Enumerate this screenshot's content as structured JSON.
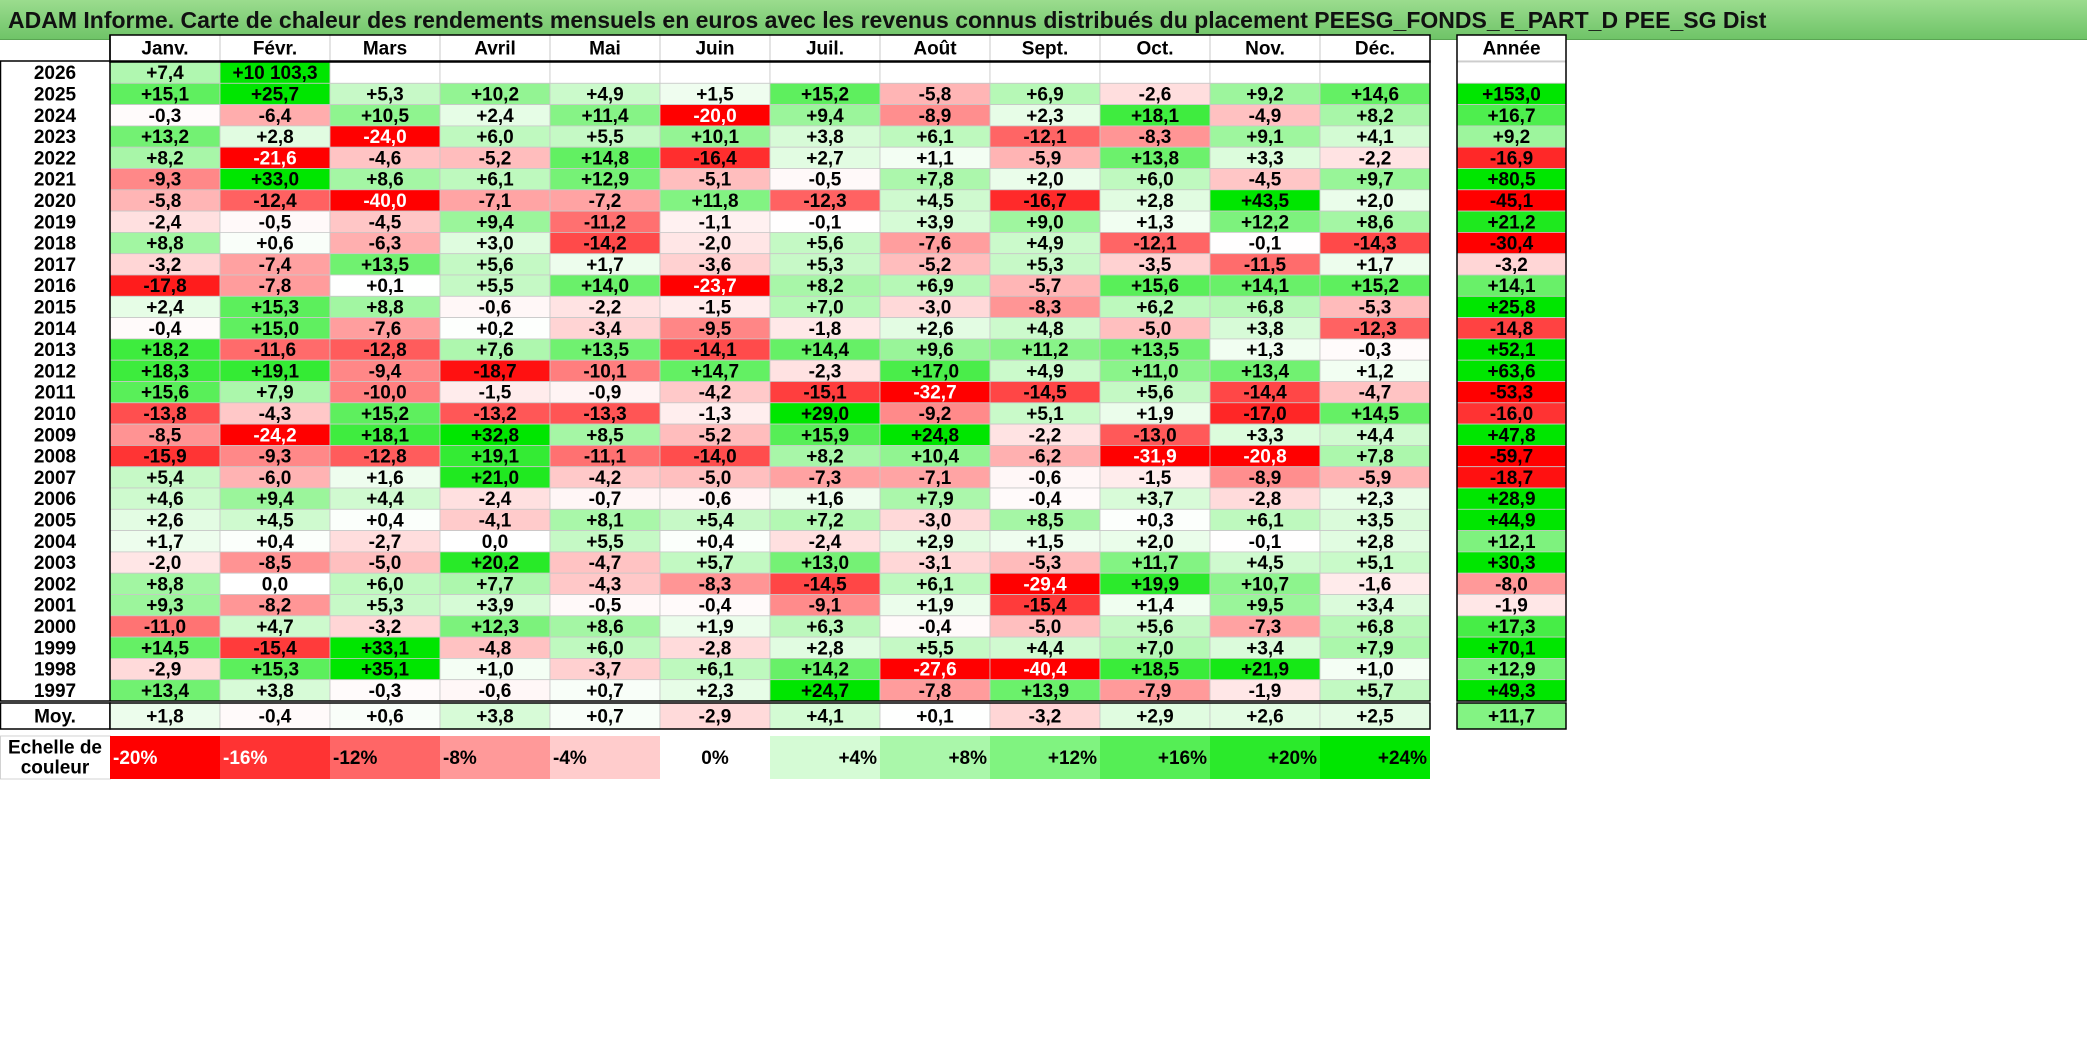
{
  "title": "ADAM Informe. Carte de chaleur des rendements mensuels en euros avec les revenus connus distribués du placement PEESG_FONDS_E_PART_D PEE_SG Dist",
  "chart_data": {
    "type": "heatmap",
    "columns": [
      "Janv.",
      "Févr.",
      "Mars",
      "Avril",
      "Mai",
      "Juin",
      "Juil.",
      "Août",
      "Sept.",
      "Oct.",
      "Nov.",
      "Déc."
    ],
    "annual_header": "Année",
    "rows": [
      {
        "year": "2026",
        "months": [
          "+7,4",
          "+10 103,3",
          "",
          "",
          "",
          "",
          "",
          "",
          "",
          "",
          "",
          ""
        ],
        "annual": ""
      },
      {
        "year": "2025",
        "months": [
          "+15,1",
          "+25,7",
          "+5,3",
          "+10,2",
          "+4,9",
          "+1,5",
          "+15,2",
          "-5,8",
          "+6,9",
          "-2,6",
          "+9,2",
          "+14,6"
        ],
        "annual": "+153,0"
      },
      {
        "year": "2024",
        "months": [
          "-0,3",
          "-6,4",
          "+10,5",
          "+2,4",
          "+11,4",
          "-20,0",
          "+9,4",
          "-8,9",
          "+2,3",
          "+18,1",
          "-4,9",
          "+8,2"
        ],
        "annual": "+16,7"
      },
      {
        "year": "2023",
        "months": [
          "+13,2",
          "+2,8",
          "-24,0",
          "+6,0",
          "+5,5",
          "+10,1",
          "+3,8",
          "+6,1",
          "-12,1",
          "-8,3",
          "+9,1",
          "+4,1"
        ],
        "annual": "+9,2"
      },
      {
        "year": "2022",
        "months": [
          "+8,2",
          "-21,6",
          "-4,6",
          "-5,2",
          "+14,8",
          "-16,4",
          "+2,7",
          "+1,1",
          "-5,9",
          "+13,8",
          "+3,3",
          "-2,2"
        ],
        "annual": "-16,9"
      },
      {
        "year": "2021",
        "months": [
          "-9,3",
          "+33,0",
          "+8,6",
          "+6,1",
          "+12,9",
          "-5,1",
          "-0,5",
          "+7,8",
          "+2,0",
          "+6,0",
          "-4,5",
          "+9,7"
        ],
        "annual": "+80,5"
      },
      {
        "year": "2020",
        "months": [
          "-5,8",
          "-12,4",
          "-40,0",
          "-7,1",
          "-7,2",
          "+11,8",
          "-12,3",
          "+4,5",
          "-16,7",
          "+2,8",
          "+43,5",
          "+2,0"
        ],
        "annual": "-45,1"
      },
      {
        "year": "2019",
        "months": [
          "-2,4",
          "-0,5",
          "-4,5",
          "+9,4",
          "-11,2",
          "-1,1",
          "-0,1",
          "+3,9",
          "+9,0",
          "+1,3",
          "+12,2",
          "+8,6"
        ],
        "annual": "+21,2"
      },
      {
        "year": "2018",
        "months": [
          "+8,8",
          "+0,6",
          "-6,3",
          "+3,0",
          "-14,2",
          "-2,0",
          "+5,6",
          "-7,6",
          "+4,9",
          "-12,1",
          "-0,1",
          "-14,3"
        ],
        "annual": "-30,4"
      },
      {
        "year": "2017",
        "months": [
          "-3,2",
          "-7,4",
          "+13,5",
          "+5,6",
          "+1,7",
          "-3,6",
          "+5,3",
          "-5,2",
          "+5,3",
          "-3,5",
          "-11,5",
          "+1,7"
        ],
        "annual": "-3,2"
      },
      {
        "year": "2016",
        "months": [
          "-17,8",
          "-7,8",
          "+0,1",
          "+5,5",
          "+14,0",
          "-23,7",
          "+8,2",
          "+6,9",
          "-5,7",
          "+15,6",
          "+14,1",
          "+15,2"
        ],
        "annual": "+14,1"
      },
      {
        "year": "2015",
        "months": [
          "+2,4",
          "+15,3",
          "+8,8",
          "-0,6",
          "-2,2",
          "-1,5",
          "+7,0",
          "-3,0",
          "-8,3",
          "+6,2",
          "+6,8",
          "-5,3"
        ],
        "annual": "+25,8"
      },
      {
        "year": "2014",
        "months": [
          "-0,4",
          "+15,0",
          "-7,6",
          "+0,2",
          "-3,4",
          "-9,5",
          "-1,8",
          "+2,6",
          "+4,8",
          "-5,0",
          "+3,8",
          "-12,3"
        ],
        "annual": "-14,8"
      },
      {
        "year": "2013",
        "months": [
          "+18,2",
          "-11,6",
          "-12,8",
          "+7,6",
          "+13,5",
          "-14,1",
          "+14,4",
          "+9,6",
          "+11,2",
          "+13,5",
          "+1,3",
          "-0,3"
        ],
        "annual": "+52,1"
      },
      {
        "year": "2012",
        "months": [
          "+18,3",
          "+19,1",
          "-9,4",
          "-18,7",
          "-10,1",
          "+14,7",
          "-2,3",
          "+17,0",
          "+4,9",
          "+11,0",
          "+13,4",
          "+1,2"
        ],
        "annual": "+63,6"
      },
      {
        "year": "2011",
        "months": [
          "+15,6",
          "+7,9",
          "-10,0",
          "-1,5",
          "-0,9",
          "-4,2",
          "-15,1",
          "-32,7",
          "-14,5",
          "+5,6",
          "-14,4",
          "-4,7"
        ],
        "annual": "-53,3"
      },
      {
        "year": "2010",
        "months": [
          "-13,8",
          "-4,3",
          "+15,2",
          "-13,2",
          "-13,3",
          "-1,3",
          "+29,0",
          "-9,2",
          "+5,1",
          "+1,9",
          "-17,0",
          "+14,5"
        ],
        "annual": "-16,0"
      },
      {
        "year": "2009",
        "months": [
          "-8,5",
          "-24,2",
          "+18,1",
          "+32,8",
          "+8,5",
          "-5,2",
          "+15,9",
          "+24,8",
          "-2,2",
          "-13,0",
          "+3,3",
          "+4,4"
        ],
        "annual": "+47,8"
      },
      {
        "year": "2008",
        "months": [
          "-15,9",
          "-9,3",
          "-12,8",
          "+19,1",
          "-11,1",
          "-14,0",
          "+8,2",
          "+10,4",
          "-6,2",
          "-31,9",
          "-20,8",
          "+7,8"
        ],
        "annual": "-59,7"
      },
      {
        "year": "2007",
        "months": [
          "+5,4",
          "-6,0",
          "+1,6",
          "+21,0",
          "-4,2",
          "-5,0",
          "-7,3",
          "-7,1",
          "-0,6",
          "-1,5",
          "-8,9",
          "-5,9"
        ],
        "annual": "-18,7"
      },
      {
        "year": "2006",
        "months": [
          "+4,6",
          "+9,4",
          "+4,4",
          "-2,4",
          "-0,7",
          "-0,6",
          "+1,6",
          "+7,9",
          "-0,4",
          "+3,7",
          "-2,8",
          "+2,3"
        ],
        "annual": "+28,9"
      },
      {
        "year": "2005",
        "months": [
          "+2,6",
          "+4,5",
          "+0,4",
          "-4,1",
          "+8,1",
          "+5,4",
          "+7,2",
          "-3,0",
          "+8,5",
          "+0,3",
          "+6,1",
          "+3,5"
        ],
        "annual": "+44,9"
      },
      {
        "year": "2004",
        "months": [
          "+1,7",
          "+0,4",
          "-2,7",
          "0,0",
          "+5,5",
          "+0,4",
          "-2,4",
          "+2,9",
          "+1,5",
          "+2,0",
          "-0,1",
          "+2,8"
        ],
        "annual": "+12,1"
      },
      {
        "year": "2003",
        "months": [
          "-2,0",
          "-8,5",
          "-5,0",
          "+20,2",
          "-4,7",
          "+5,7",
          "+13,0",
          "-3,1",
          "-5,3",
          "+11,7",
          "+4,5",
          "+5,1"
        ],
        "annual": "+30,3"
      },
      {
        "year": "2002",
        "months": [
          "+8,8",
          "0,0",
          "+6,0",
          "+7,7",
          "-4,3",
          "-8,3",
          "-14,5",
          "+6,1",
          "-29,4",
          "+19,9",
          "+10,7",
          "-1,6"
        ],
        "annual": "-8,0"
      },
      {
        "year": "2001",
        "months": [
          "+9,3",
          "-8,2",
          "+5,3",
          "+3,9",
          "-0,5",
          "-0,4",
          "-9,1",
          "+1,9",
          "-15,4",
          "+1,4",
          "+9,5",
          "+3,4"
        ],
        "annual": "-1,9"
      },
      {
        "year": "2000",
        "months": [
          "-11,0",
          "+4,7",
          "-3,2",
          "+12,3",
          "+8,6",
          "+1,9",
          "+6,3",
          "-0,4",
          "-5,0",
          "+5,6",
          "-7,3",
          "+6,8"
        ],
        "annual": "+17,3"
      },
      {
        "year": "1999",
        "months": [
          "+14,5",
          "-15,4",
          "+33,1",
          "-4,8",
          "+6,0",
          "-2,8",
          "+2,8",
          "+5,5",
          "+4,4",
          "+7,0",
          "+3,4",
          "+7,9"
        ],
        "annual": "+70,1"
      },
      {
        "year": "1998",
        "months": [
          "-2,9",
          "+15,3",
          "+35,1",
          "+1,0",
          "-3,7",
          "+6,1",
          "+14,2",
          "-27,6",
          "-40,4",
          "+18,5",
          "+21,9",
          "+1,0"
        ],
        "annual": "+12,9"
      },
      {
        "year": "1997",
        "months": [
          "+13,4",
          "+3,8",
          "-0,3",
          "-0,6",
          "+0,7",
          "+2,3",
          "+24,7",
          "-7,8",
          "+13,9",
          "-7,9",
          "-1,9",
          "+5,7"
        ],
        "annual": "+49,3"
      }
    ],
    "average_row": {
      "label": "Moy.",
      "months": [
        "+1,8",
        "-0,4",
        "+0,6",
        "+3,8",
        "+0,7",
        "-2,9",
        "+4,1",
        "+0,1",
        "-3,2",
        "+2,9",
        "+2,6",
        "+2,5"
      ],
      "annual": "+11,7"
    },
    "scale_label_lines": [
      "Echelle de",
      "couleur"
    ],
    "scale": [
      "-20%",
      "-16%",
      "-12%",
      "-8%",
      "-4%",
      "0%",
      "+4%",
      "+8%",
      "+12%",
      "+16%",
      "+20%",
      "+24%"
    ],
    "colors": {
      "negative": "#ff0000",
      "positive": "#00e600",
      "neutral": "#ffffff",
      "title_bar": "#7ccd72"
    }
  }
}
